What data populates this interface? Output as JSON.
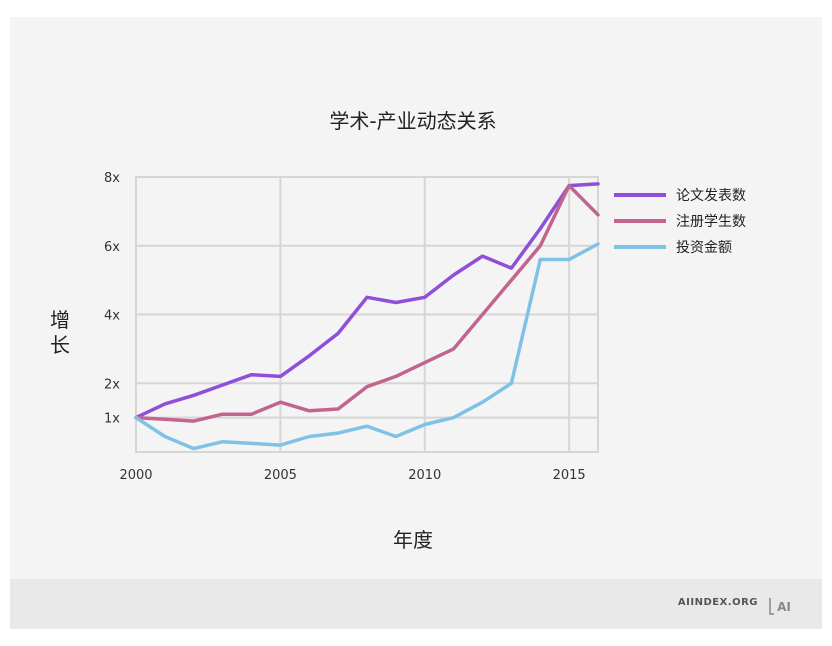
{
  "chart_data": {
    "type": "line",
    "title": "学术-产业动态关系",
    "xlabel": "年度",
    "ylabel": "增长",
    "x": [
      2000,
      2001,
      2002,
      2003,
      2004,
      2005,
      2006,
      2007,
      2008,
      2009,
      2010,
      2011,
      2012,
      2013,
      2014,
      2015,
      2016
    ],
    "xticks": [
      "2000",
      "2005",
      "2010",
      "2015"
    ],
    "xtick_values": [
      2000,
      2005,
      2010,
      2015
    ],
    "yticks": [
      "1x",
      "2x",
      "4x",
      "6x",
      "8x"
    ],
    "ytick_values": [
      1,
      2,
      4,
      6,
      8
    ],
    "xlim": [
      2000,
      2016
    ],
    "ylim": [
      0,
      8
    ],
    "grid": true,
    "legend_position": "right",
    "series": [
      {
        "name": "论文发表数",
        "color": "#8f4fd8",
        "values": [
          1.0,
          1.4,
          1.65,
          1.95,
          2.25,
          2.2,
          2.8,
          3.45,
          4.5,
          4.35,
          4.5,
          5.15,
          5.7,
          5.35,
          6.5,
          7.75,
          7.8
        ]
      },
      {
        "name": "注册学生数",
        "color": "#c1658f",
        "values": [
          1.0,
          0.95,
          0.9,
          1.1,
          1.1,
          1.45,
          1.2,
          1.25,
          1.9,
          2.2,
          2.6,
          3.0,
          4.0,
          5.0,
          6.0,
          7.75,
          6.9
        ]
      },
      {
        "name": "投资金额",
        "color": "#7fc2e6",
        "values": [
          1.0,
          0.45,
          0.1,
          0.3,
          0.25,
          0.2,
          0.45,
          0.55,
          0.75,
          0.45,
          0.8,
          1.0,
          1.45,
          2.0,
          5.6,
          5.6,
          6.05
        ]
      }
    ]
  },
  "footer": {
    "site": "AIINDEX.ORG",
    "logo_text": "AI"
  }
}
